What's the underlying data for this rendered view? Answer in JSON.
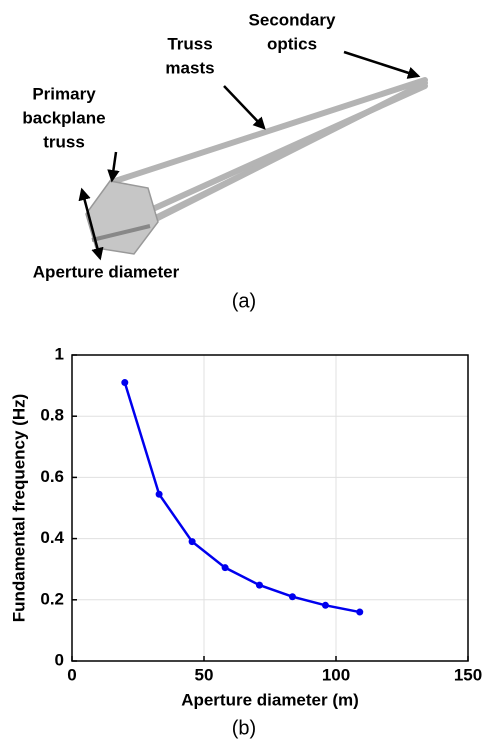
{
  "diagram": {
    "labels": {
      "secondary_optics": [
        "Secondary",
        "optics"
      ],
      "truss_masts": [
        "Truss",
        "masts"
      ],
      "primary_backplane_truss": [
        "Primary",
        "backplane",
        "truss"
      ],
      "aperture_diameter": "Aperture diameter"
    },
    "caption": "(a)"
  },
  "chart_data": {
    "type": "line",
    "xlabel": "Aperture diameter (m)",
    "ylabel": "Fundamental frequency (Hz)",
    "caption": "(b)",
    "x": [
      20,
      33,
      45.5,
      58,
      71,
      83.5,
      96,
      109
    ],
    "series": [
      {
        "color": "#0000ee",
        "values": [
          0.91,
          0.545,
          0.39,
          0.305,
          0.248,
          0.21,
          0.182,
          0.16
        ]
      }
    ],
    "xlim": [
      0,
      150
    ],
    "xticks": [
      0,
      50,
      100,
      150
    ],
    "ylim": [
      0,
      1
    ],
    "yticks": [
      0,
      0.2,
      0.4,
      0.6,
      0.8,
      1
    ],
    "grid": true
  }
}
